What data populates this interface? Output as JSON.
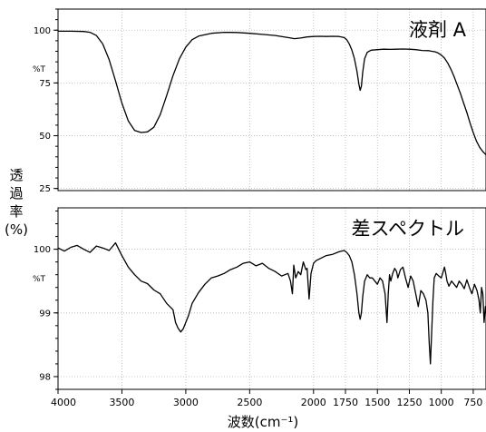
{
  "chart_data": {
    "type": "line",
    "x_axis": {
      "label": "波数(cm⁻¹)",
      "range": [
        4000,
        650
      ],
      "reversed": true,
      "ticks": [
        4000,
        3500,
        3000,
        2500,
        2000,
        1750,
        1500,
        1250,
        1000,
        750
      ],
      "tick_labels": [
        "4000",
        "3500",
        "3000",
        "2500",
        "2000",
        "1750",
        "1500",
        "1250",
        "1000",
        "750"
      ]
    },
    "y_axis_label_lines": [
      "透",
      "過",
      "率",
      "(%)"
    ],
    "grid": true,
    "panels": [
      {
        "title": "液剤 A",
        "y_unit_label": "%T",
        "ylim": [
          24,
          110
        ],
        "y_ticks": [
          100,
          75,
          50,
          25
        ],
        "y_tick_labels": [
          "100",
          "75",
          "50",
          "25"
        ],
        "series": [
          {
            "x": [
              4000,
              3900,
              3800,
              3750,
              3700,
              3650,
              3600,
              3550,
              3500,
              3450,
              3400,
              3350,
              3300,
              3250,
              3200,
              3150,
              3100,
              3050,
              3000,
              2950,
              2900,
              2800,
              2700,
              2600,
              2500,
              2400,
              2300,
              2200,
              2150,
              2100,
              2050,
              2000,
              1950,
              1900,
              1850,
              1800,
              1760,
              1740,
              1720,
              1700,
              1680,
              1660,
              1645,
              1635,
              1625,
              1615,
              1600,
              1580,
              1550,
              1500,
              1450,
              1400,
              1350,
              1300,
              1250,
              1200,
              1150,
              1100,
              1075,
              1050,
              1025,
              1000,
              975,
              950,
              925,
              900,
              875,
              850,
              825,
              800,
              775,
              750,
              725,
              700,
              675,
              650
            ],
            "y": [
              99.5,
              99.5,
              99.4,
              99.0,
              97.5,
              93.5,
              86,
              76,
              65.5,
              57,
              52.5,
              51.5,
              51.8,
              54,
              60,
              69,
              78.5,
              86.5,
              92,
              95.5,
              97.2,
              98.5,
              99.0,
              98.9,
              98.5,
              98.0,
              97.5,
              96.5,
              96.0,
              96.3,
              96.8,
              97.0,
              97.1,
              97.0,
              97.1,
              97.0,
              96.5,
              95.5,
              93.5,
              90.5,
              86.5,
              80.5,
              74.5,
              71.5,
              73.5,
              80,
              86.5,
              89.5,
              90.5,
              90.8,
              91.0,
              90.9,
              91.0,
              91.1,
              91.0,
              90.8,
              90.4,
              90.3,
              90.0,
              89.8,
              89.2,
              88.2,
              86.8,
              84.5,
              81.5,
              78,
              74,
              70,
              65.5,
              61,
              56,
              51.5,
              47.5,
              44.5,
              42.5,
              41
            ]
          }
        ]
      },
      {
        "title": "差スペクトル",
        "y_unit_label": "%T",
        "ylim": [
          97.8,
          100.65
        ],
        "y_ticks": [
          100,
          99,
          98
        ],
        "y_tick_labels": [
          "100",
          "99",
          "98"
        ],
        "series": [
          {
            "x": [
              4000,
              3950,
              3900,
              3850,
              3800,
              3750,
              3700,
              3650,
              3600,
              3550,
              3500,
              3450,
              3400,
              3350,
              3300,
              3250,
              3200,
              3150,
              3100,
              3080,
              3060,
              3040,
              3020,
              3000,
              2980,
              2950,
              2900,
              2850,
              2800,
              2750,
              2700,
              2650,
              2600,
              2550,
              2500,
              2450,
              2400,
              2350,
              2300,
              2250,
              2200,
              2180,
              2165,
              2155,
              2140,
              2120,
              2100,
              2080,
              2060,
              2050,
              2035,
              2020,
              2000,
              1980,
              1950,
              1900,
              1850,
              1800,
              1760,
              1740,
              1720,
              1700,
              1680,
              1660,
              1645,
              1635,
              1625,
              1615,
              1600,
              1580,
              1560,
              1540,
              1520,
              1500,
              1480,
              1460,
              1440,
              1425,
              1415,
              1405,
              1395,
              1380,
              1365,
              1350,
              1340,
              1320,
              1300,
              1280,
              1260,
              1240,
              1220,
              1200,
              1180,
              1160,
              1140,
              1120,
              1105,
              1095,
              1085,
              1075,
              1065,
              1055,
              1040,
              1020,
              1000,
              985,
              975,
              965,
              955,
              940,
              920,
              900,
              880,
              860,
              840,
              820,
              800,
              780,
              760,
              740,
              720,
              705,
              695,
              685,
              675,
              665,
              655,
              650
            ],
            "y": [
              100.02,
              99.97,
              100.03,
              100.06,
              100.0,
              99.95,
              100.05,
              100.02,
              99.98,
              100.1,
              99.9,
              99.72,
              99.6,
              99.5,
              99.46,
              99.36,
              99.3,
              99.15,
              99.05,
              98.85,
              98.76,
              98.7,
              98.75,
              98.85,
              98.95,
              99.15,
              99.32,
              99.45,
              99.55,
              99.58,
              99.62,
              99.68,
              99.72,
              99.78,
              99.8,
              99.74,
              99.78,
              99.7,
              99.65,
              99.58,
              99.62,
              99.5,
              99.3,
              99.75,
              99.55,
              99.65,
              99.6,
              99.8,
              99.68,
              99.7,
              99.22,
              99.62,
              99.78,
              99.82,
              99.85,
              99.9,
              99.92,
              99.96,
              99.98,
              99.95,
              99.9,
              99.8,
              99.6,
              99.3,
              99.0,
              98.9,
              99.0,
              99.25,
              99.5,
              99.6,
              99.55,
              99.55,
              99.5,
              99.45,
              99.55,
              99.5,
              99.3,
              98.85,
              99.3,
              99.6,
              99.5,
              99.62,
              99.7,
              99.65,
              99.55,
              99.68,
              99.72,
              99.55,
              99.4,
              99.58,
              99.5,
              99.3,
              99.1,
              99.35,
              99.3,
              99.2,
              99.0,
              98.55,
              98.2,
              98.7,
              99.2,
              99.55,
              99.62,
              99.58,
              99.55,
              99.65,
              99.72,
              99.62,
              99.5,
              99.42,
              99.5,
              99.45,
              99.4,
              99.5,
              99.45,
              99.38,
              99.52,
              99.4,
              99.3,
              99.45,
              99.35,
              99.2,
              99.0,
              99.4,
              99.3,
              98.85,
              99.1,
              99.0
            ]
          }
        ]
      }
    ]
  }
}
